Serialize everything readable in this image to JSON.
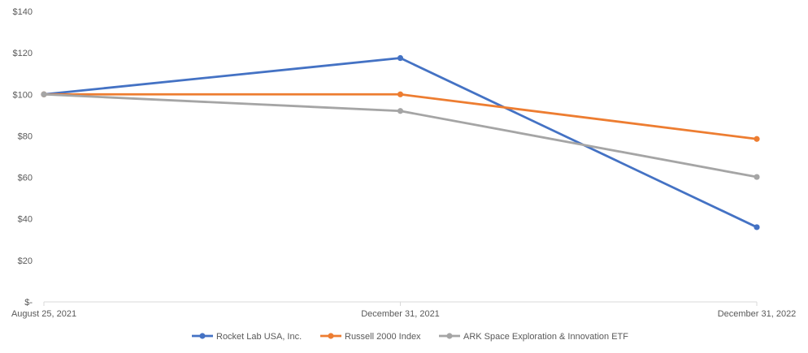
{
  "chart_data": {
    "type": "line",
    "title": "",
    "xlabel": "",
    "ylabel": "",
    "categories": [
      "August 25, 2021",
      "December 31, 2021",
      "December 31, 2022"
    ],
    "ylim": [
      0,
      140
    ],
    "yticks": [
      0,
      20,
      40,
      60,
      80,
      100,
      120,
      140
    ],
    "ytick_labels": [
      "$-",
      "$20",
      "$40",
      "$60",
      "$80",
      "$100",
      "$120",
      "$140"
    ],
    "grid": false,
    "legend_position": "bottom",
    "series": [
      {
        "name": "Rocket Lab USA, Inc.",
        "color": "#4472C4",
        "values": [
          100,
          117.5,
          36
        ]
      },
      {
        "name": "Russell 2000 Index",
        "color": "#ED7D31",
        "values": [
          100,
          100,
          78.5
        ]
      },
      {
        "name": "ARK Space Exploration & Innovation ETF",
        "color": "#A5A5A5",
        "values": [
          100,
          92,
          60.2
        ]
      }
    ]
  }
}
